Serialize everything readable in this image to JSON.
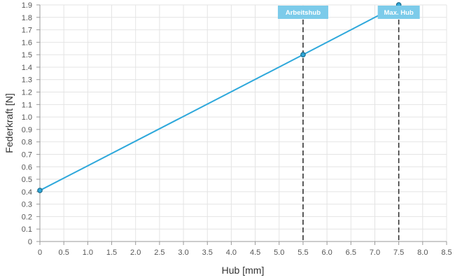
{
  "chart_data": {
    "type": "line",
    "title": "",
    "xlabel": "Hub [mm]",
    "ylabel": "Federkraft [N]",
    "xlim": [
      0,
      8.5
    ],
    "ylim": [
      0,
      1.9
    ],
    "x_ticks": [
      "0",
      "0.5",
      "1.0",
      "1.5",
      "2.0",
      "2.5",
      "3.0",
      "3.5",
      "4.0",
      "4.5",
      "5.0",
      "5.5",
      "6.0",
      "6.5",
      "7.0",
      "7.5",
      "8.0",
      "8.5"
    ],
    "y_ticks": [
      "0",
      "0.1",
      "0.2",
      "0.3",
      "0.4",
      "0.5",
      "0.6",
      "0.7",
      "0.8",
      "0.9",
      "1.0",
      "1.1",
      "1.2",
      "1.3",
      "1.4",
      "1.5",
      "1.6",
      "1.7",
      "1.8",
      "1.9"
    ],
    "grid": true,
    "series": [
      {
        "color": "#2ea8db",
        "points": [
          {
            "x": 0,
            "y": 0.41
          },
          {
            "x": 5.5,
            "y": 1.5
          },
          {
            "x": 7.5,
            "y": 1.9
          }
        ]
      }
    ],
    "annotations": [
      {
        "label": "Arbeitshub",
        "x": 5.5
      },
      {
        "label": "Max. Hub",
        "x": 7.5
      }
    ],
    "colors": {
      "line": "#2ea8db",
      "marker_fill": "#2ea8db",
      "marker_stroke": "#1f6f8f",
      "annotation_bg": "#7ccbea",
      "annotation_line": "#333333",
      "grid": "#e4e4e4",
      "axis": "#999999"
    }
  }
}
